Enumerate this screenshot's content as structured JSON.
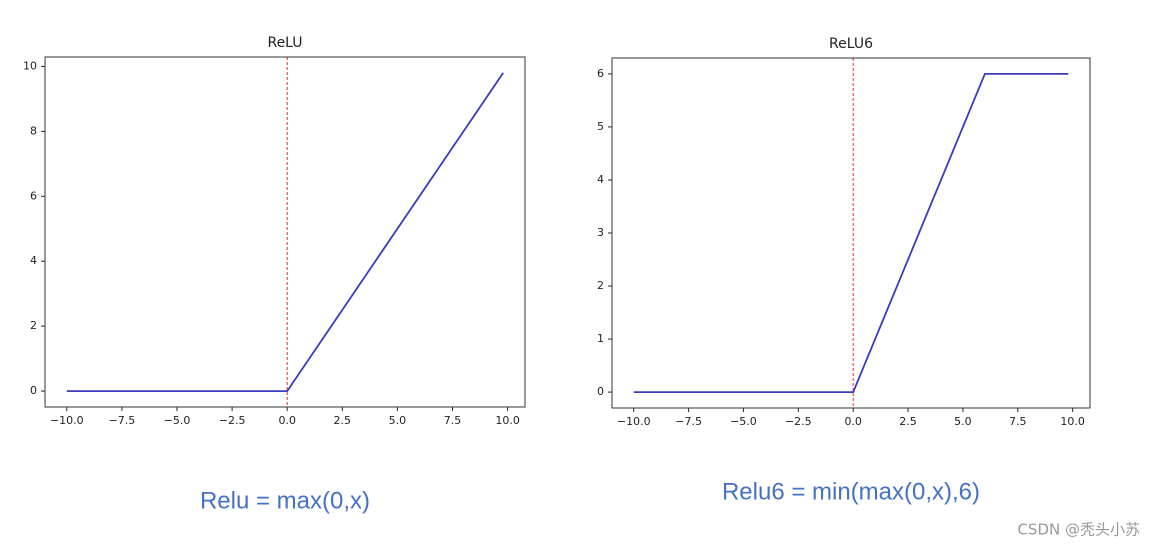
{
  "chart_data": [
    {
      "type": "line",
      "title": "ReLU",
      "caption": "Relu = max(0,x)",
      "x": [
        -10,
        0,
        9.8
      ],
      "values": [
        0,
        0,
        9.8
      ],
      "color": "#3b3bbf",
      "vline": 0,
      "vline_color": "#e03030",
      "xlim": [
        -10.99,
        10.79
      ],
      "ylim": [
        -0.49,
        10.29
      ],
      "xticks": [
        {
          "value": -10,
          "label": "−10.0"
        },
        {
          "value": -7.5,
          "label": "−7.5"
        },
        {
          "value": -5,
          "label": "−5.0"
        },
        {
          "value": -2.5,
          "label": "−2.5"
        },
        {
          "value": 0,
          "label": "0.0"
        },
        {
          "value": 2.5,
          "label": "2.5"
        },
        {
          "value": 5,
          "label": "5.0"
        },
        {
          "value": 7.5,
          "label": "7.5"
        },
        {
          "value": 10,
          "label": "10.0"
        }
      ],
      "yticks": [
        0,
        2,
        4,
        6,
        8,
        10
      ]
    },
    {
      "type": "line",
      "title": "ReLU6",
      "caption": "Relu6 = min(max(0,x),6)",
      "x": [
        -10,
        0,
        6,
        9.8
      ],
      "values": [
        0,
        0,
        6,
        6
      ],
      "color": "#3b3bbf",
      "vline": 0,
      "vline_color": "#e03030",
      "xlim": [
        -10.99,
        10.79
      ],
      "ylim": [
        -0.3,
        6.3
      ],
      "xticks": [
        {
          "value": -10,
          "label": "−10.0"
        },
        {
          "value": -7.5,
          "label": "−7.5"
        },
        {
          "value": -5,
          "label": "−5.0"
        },
        {
          "value": -2.5,
          "label": "−2.5"
        },
        {
          "value": 0,
          "label": "0.0"
        },
        {
          "value": 2.5,
          "label": "2.5"
        },
        {
          "value": 5,
          "label": "5.0"
        },
        {
          "value": 7.5,
          "label": "7.5"
        },
        {
          "value": 10,
          "label": "10.0"
        }
      ],
      "yticks": [
        0,
        1,
        2,
        3,
        4,
        5,
        6
      ]
    }
  ],
  "watermark": "CSDN @秃头小苏"
}
